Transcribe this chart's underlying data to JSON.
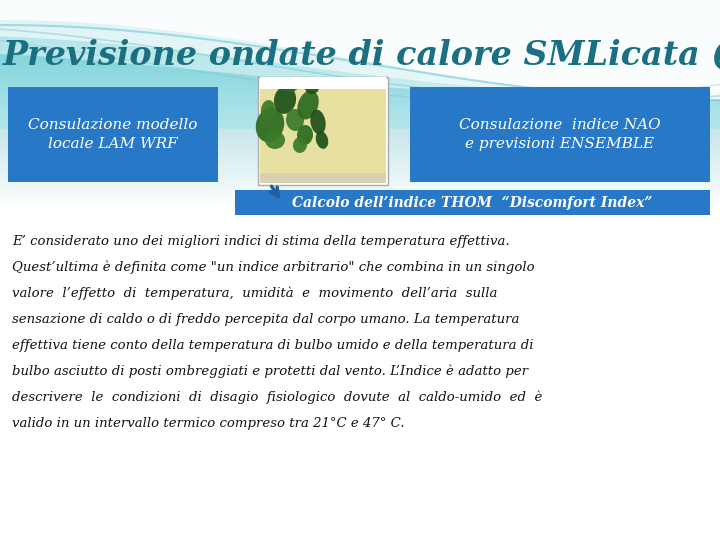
{
  "title": "Previsione ondate di calore SMLicata (II)",
  "title_color": "#1a7080",
  "box1_text": "Consulazione modello\nlocale LAM WRF",
  "box2_text": "Consulazione  indice NAO\ne previsioni ENSEMBLE",
  "box_color": "#2878c8",
  "box_text_color": "#ffffff",
  "bar_text": "Calcolo dell’indice THOM  “Discomfort Index”",
  "bar_color": "#2878c8",
  "bar_text_color": "#ffffff",
  "body_lines": [
    "E’ considerato uno dei migliori indici di stima della temperatura effettiva.",
    "Quest’ultima è definita come \"un indice arbitrario\" che combina in un singolo",
    "valore  l’effetto  di  temperatura,  umidità  e  movimento  dell’aria  sulla",
    "sensazione di caldo o di freddo percepita dal corpo umano. La temperatura",
    "effettiva tiene conto della temperatura di bulbo umido e della temperatura di",
    "bulbo asciutto di posti ombreggiati e protetti dal vento. L’Indice è adatto per",
    "descrivere  le  condizioni  di  disagio  fisiologico  dovute  al  caldo-umido  ed  è",
    "valido in un intervallo termico compreso tra 21°C e 47° C."
  ],
  "body_text_color": "#111111",
  "wave_color1": "#7dd8e8",
  "wave_color2": "#5cc8d8",
  "wave_color3": "#3ab8c8",
  "white_curve_color": "#ffffff",
  "bg_color": "#ffffff",
  "map_bg": "#d0e890",
  "map_dark_green": "#2a6a20",
  "map_mid_green": "#4a9a30",
  "map_light_green": "#7abb50",
  "map_yellow": "#e8e0a0",
  "map_legend_bg": "#e0d8a0",
  "arrow_color": "#2060a0"
}
